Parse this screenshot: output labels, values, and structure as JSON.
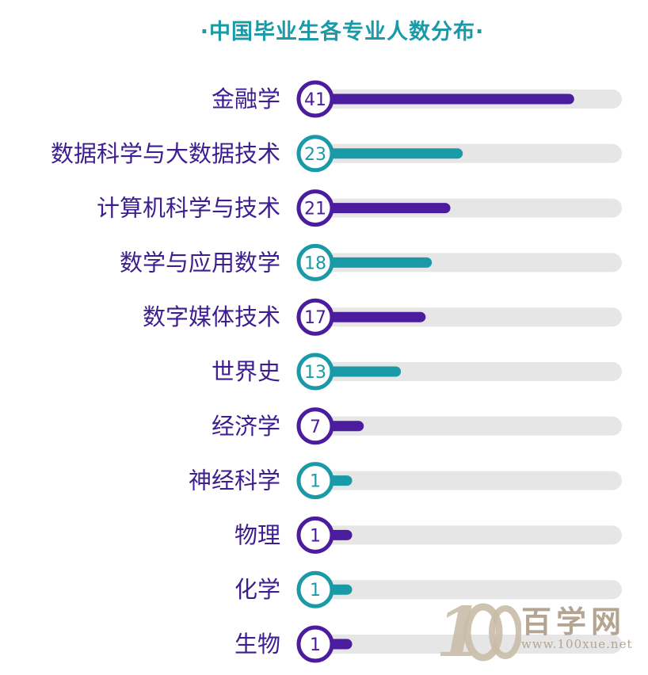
{
  "chart_data": {
    "type": "bar",
    "orientation": "horizontal",
    "title": "·中国毕业生各专业人数分布·",
    "categories": [
      "金融学",
      "数据科学与大数据技术",
      "计算机科学与技术",
      "数学与应用数学",
      "数字媒体技术",
      "世界史",
      "经济学",
      "神经科学",
      "物理",
      "化学",
      "生物"
    ],
    "values": [
      41,
      23,
      21,
      18,
      17,
      13,
      7,
      1,
      1,
      1,
      1
    ],
    "xlim": [
      0,
      48
    ],
    "grid": false,
    "legend": "none",
    "colors": {
      "purple": "#4b1d9e",
      "teal": "#1a9aa6",
      "track": "#e6e6e6",
      "label": "#3d1d8f"
    }
  },
  "watermark": {
    "logo_text": "百学网",
    "url": "www.100xue.net"
  }
}
